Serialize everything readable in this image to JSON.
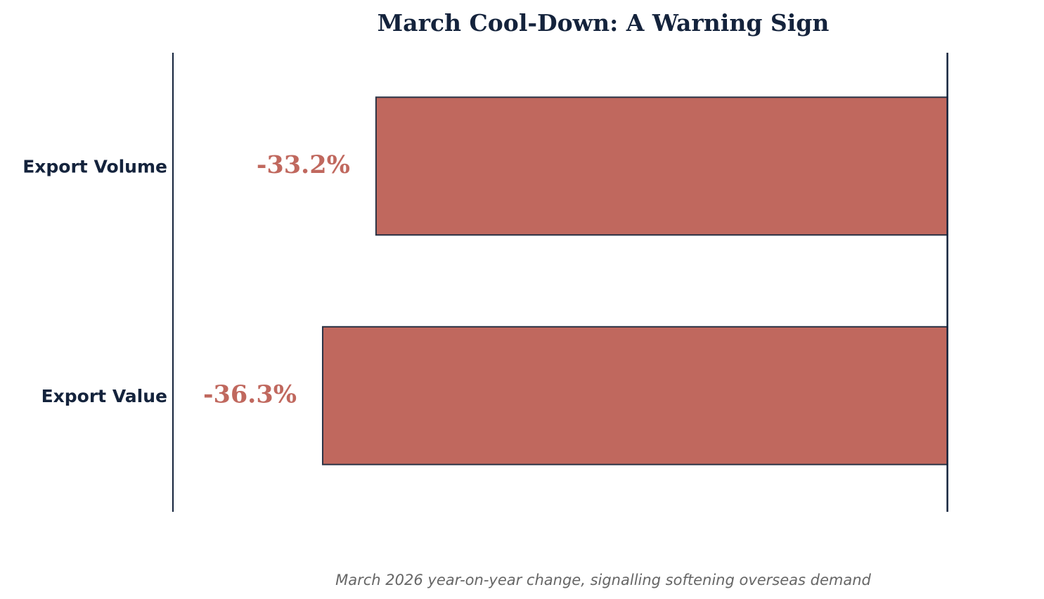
{
  "chart_data": {
    "type": "barh",
    "title": "March Cool-Down: A Warning Sign",
    "subtitle": "March 2026 year-on-year change, signalling softening overseas demand",
    "categories": [
      "Export Volume",
      "Export Value"
    ],
    "values": [
      -33.2,
      -36.3
    ],
    "value_labels": [
      "-33.2%",
      "-36.3%"
    ],
    "color": "#c0685e",
    "xlim": [
      -45,
      5
    ],
    "grid": false
  }
}
